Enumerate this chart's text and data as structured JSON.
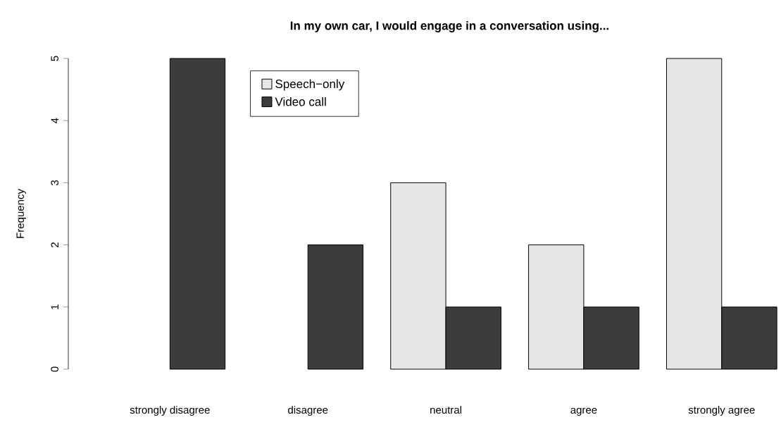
{
  "chart_data": {
    "type": "bar",
    "title": "In my own car, I would engage in a conversation using...",
    "ylabel": "Frequency",
    "categories": [
      "strongly disagree",
      "disagree",
      "neutral",
      "agree",
      "strongly agree"
    ],
    "series": [
      {
        "name": "Speech−only",
        "color": "#e6e6e6",
        "values": [
          0,
          0,
          3,
          2,
          5
        ]
      },
      {
        "name": "Video call",
        "color": "#3c3c3c",
        "values": [
          5,
          2,
          1,
          1,
          1
        ]
      }
    ],
    "ylim": [
      0,
      5
    ],
    "yticks": [
      0,
      1,
      2,
      3,
      4,
      5
    ],
    "legend": "top"
  }
}
